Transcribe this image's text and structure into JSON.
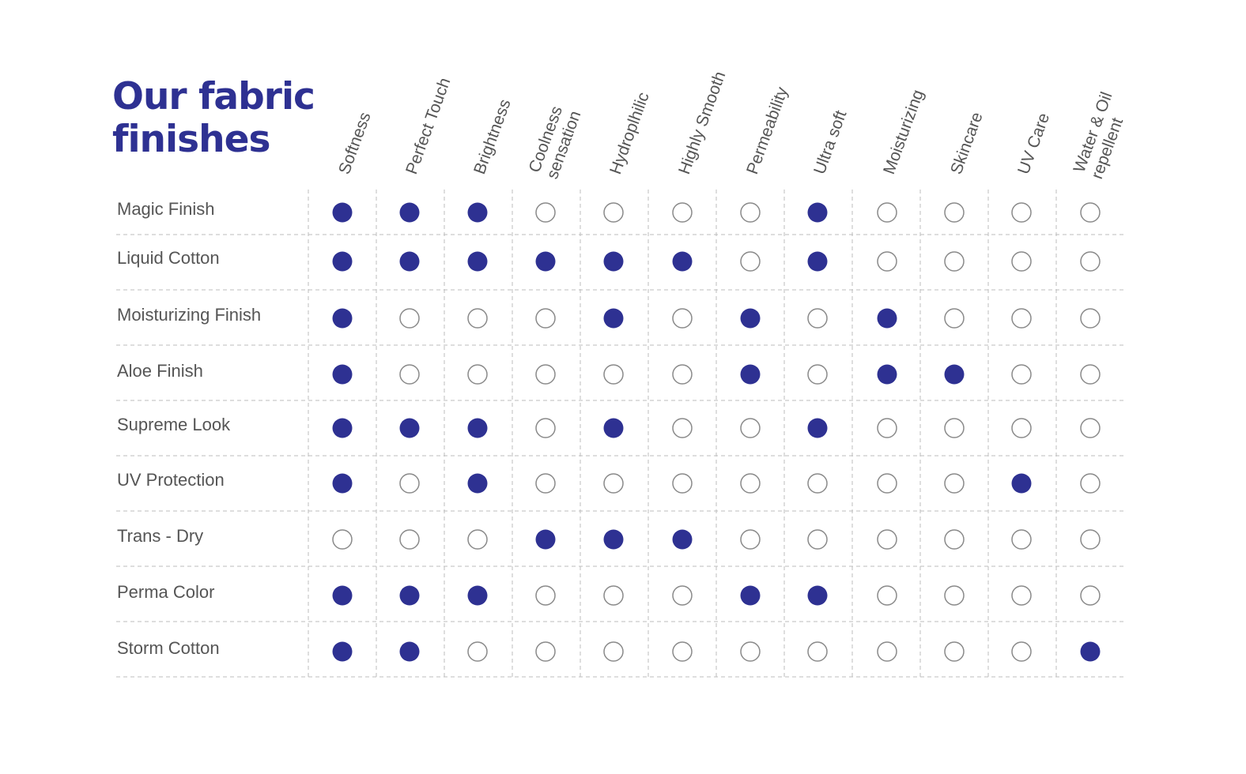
{
  "title": {
    "line1": "Our fabric",
    "line2": "finishes"
  },
  "colors": {
    "accent": "#2e3192",
    "empty_stroke": "#8a8a8a",
    "grid": "#bdbdbd",
    "label": "#555555"
  },
  "chart_data": {
    "type": "table",
    "columns": [
      [
        "Softness"
      ],
      [
        "Perfect Touch"
      ],
      [
        "Brightness"
      ],
      [
        "Coolness",
        "sensation"
      ],
      [
        "Hydroplhilic"
      ],
      [
        "Highly Smooth"
      ],
      [
        "Permeability"
      ],
      [
        "Ultra soft"
      ],
      [
        "Moisturizing"
      ],
      [
        "Skincare"
      ],
      [
        "UV Care"
      ],
      [
        "Water & Oil",
        "repellent"
      ]
    ],
    "rows": [
      {
        "label": "Magic Finish",
        "values": [
          1,
          1,
          1,
          0,
          0,
          0,
          0,
          1,
          0,
          0,
          0,
          0
        ]
      },
      {
        "label": "Liquid Cotton",
        "values": [
          1,
          1,
          1,
          1,
          1,
          1,
          0,
          1,
          0,
          0,
          0,
          0
        ]
      },
      {
        "label": "Moisturizing Finish",
        "values": [
          1,
          0,
          0,
          0,
          1,
          0,
          1,
          0,
          1,
          0,
          0,
          0
        ]
      },
      {
        "label": "Aloe Finish",
        "values": [
          1,
          0,
          0,
          0,
          0,
          0,
          1,
          0,
          1,
          1,
          0,
          0
        ]
      },
      {
        "label": "Supreme Look",
        "values": [
          1,
          1,
          1,
          0,
          1,
          0,
          0,
          1,
          0,
          0,
          0,
          0
        ]
      },
      {
        "label": "UV Protection",
        "values": [
          1,
          0,
          1,
          0,
          0,
          0,
          0,
          0,
          0,
          0,
          1,
          0
        ]
      },
      {
        "label": "Trans - Dry",
        "values": [
          0,
          0,
          0,
          1,
          1,
          1,
          0,
          0,
          0,
          0,
          0,
          0
        ]
      },
      {
        "label": "Perma Color",
        "values": [
          1,
          1,
          1,
          0,
          0,
          0,
          1,
          1,
          0,
          0,
          0,
          0
        ]
      },
      {
        "label": "Storm Cotton",
        "values": [
          1,
          1,
          0,
          0,
          0,
          0,
          0,
          0,
          0,
          0,
          0,
          1
        ]
      }
    ]
  }
}
